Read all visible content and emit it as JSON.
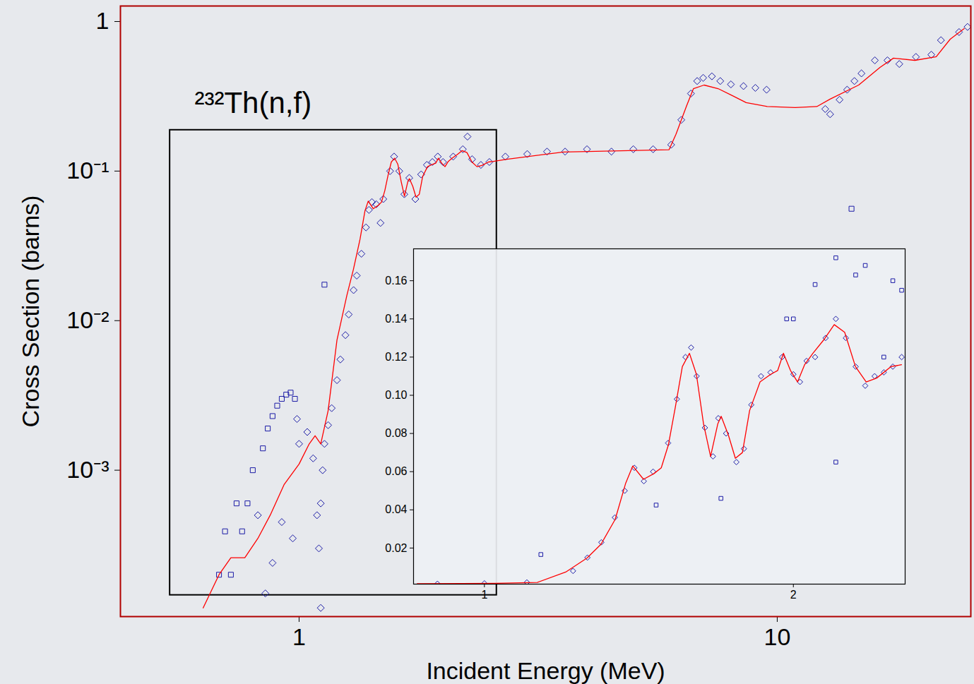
{
  "chart_data": [
    {
      "type": "line",
      "title": "²³²Th(n,f)",
      "x_label": "Incident Energy (MeV)",
      "y_label": "Cross Section (barns)",
      "log": true,
      "grid": false,
      "xlim": [
        0.423,
        25.4
      ],
      "ylim": [
        0.000105,
        1.27
      ],
      "xticks": [
        1,
        10
      ],
      "yticks": [
        1,
        {
          "value": 0.1,
          "label": "10⁻¹"
        },
        {
          "value": 0.01,
          "label": "10⁻²"
        },
        {
          "value": 0.001,
          "label": "10⁻³"
        }
      ],
      "inset_region": {
        "x": [
          0.537,
          2.59
        ],
        "y": [
          0.000146,
          0.188
        ]
      },
      "series": [
        {
          "type": "scatter",
          "marker": "diamond",
          "color": "#1c1ca6",
          "x": [
            0.82,
            0.85,
            0.88,
            0.92,
            0.97,
            0.99,
            1.0,
            1.04,
            1.07,
            1.09,
            1.1,
            1.11,
            1.11,
            1.12,
            1.13,
            1.15,
            1.17,
            1.2,
            1.22,
            1.25,
            1.27,
            1.3,
            1.32,
            1.35,
            1.38,
            1.4,
            1.42,
            1.45,
            1.48,
            1.5,
            1.55,
            1.58,
            1.62,
            1.66,
            1.7,
            1.75,
            1.8,
            1.85,
            1.9,
            1.95,
            2.0,
            2.1,
            2.2,
            2.25,
            2.3,
            2.4,
            2.5,
            2.7,
            3.0,
            3.3,
            3.6,
            4.0,
            4.5,
            5.0,
            5.5,
            6.0,
            6.3,
            6.6,
            6.8,
            7.0,
            7.3,
            7.6,
            8.0,
            8.5,
            9.0,
            9.5,
            12.6,
            12.9,
            13.5,
            14.0,
            14.5,
            15.0,
            16.0,
            17.0,
            18.0,
            19.5,
            21.0,
            22.0,
            24.0,
            25.0
          ],
          "values": [
            0.0005,
            0.00015,
            0.00024,
            0.00045,
            0.00035,
            0.0022,
            0.0015,
            0.0018,
            0.0012,
            0.0005,
            0.0003,
            0.0006,
            0.00012,
            0.001,
            0.0015,
            0.002,
            0.0026,
            0.004,
            0.0055,
            0.008,
            0.011,
            0.016,
            0.02,
            0.028,
            0.042,
            0.055,
            0.062,
            0.06,
            0.045,
            0.065,
            0.1,
            0.125,
            0.1,
            0.07,
            0.09,
            0.065,
            0.095,
            0.11,
            0.115,
            0.125,
            0.115,
            0.125,
            0.14,
            0.17,
            0.12,
            0.11,
            0.115,
            0.125,
            0.13,
            0.135,
            0.135,
            0.14,
            0.135,
            0.14,
            0.14,
            0.15,
            0.22,
            0.33,
            0.4,
            0.42,
            0.43,
            0.4,
            0.38,
            0.37,
            0.36,
            0.35,
            0.26,
            0.24,
            0.3,
            0.35,
            0.4,
            0.45,
            0.55,
            0.55,
            0.52,
            0.58,
            0.6,
            0.75,
            0.85,
            0.92
          ]
        },
        {
          "type": "scatter",
          "marker": "square",
          "color": "#1c1ca6",
          "x": [
            0.68,
            0.7,
            0.72,
            0.74,
            0.76,
            0.78,
            0.8,
            0.84,
            0.86,
            0.88,
            0.9,
            0.92,
            0.94,
            0.96,
            0.98,
            1.13,
            14.3
          ],
          "values": [
            0.0002,
            0.00039,
            0.0002,
            0.0006,
            0.00039,
            0.0006,
            0.001,
            0.0014,
            0.0019,
            0.0023,
            0.0027,
            0.003,
            0.0032,
            0.0033,
            0.003,
            0.0174,
            0.056
          ]
        },
        {
          "type": "line",
          "color": "#ff0000",
          "x": [
            0.63,
            0.68,
            0.72,
            0.77,
            0.82,
            0.87,
            0.93,
            1.0,
            1.05,
            1.08,
            1.11,
            1.15,
            1.2,
            1.259,
            1.299,
            1.341,
            1.373,
            1.395,
            1.429,
            1.463,
            1.487,
            1.511,
            1.535,
            1.559,
            1.584,
            1.609,
            1.635,
            1.661,
            1.688,
            1.701,
            1.729,
            1.756,
            1.784,
            1.813,
            1.856,
            1.901,
            1.931,
            1.956,
            1.987,
            2.019,
            2.051,
            2.09,
            2.141,
            2.192,
            2.244,
            2.299,
            2.355,
            2.411,
            2.489,
            2.549,
            2.72,
            3.57,
            5.94,
            6.14,
            6.46,
            6.68,
            7.03,
            7.52,
            8.05,
            8.61,
            9.53,
            10.9,
            12.1,
            12.9,
            14.8,
            16.4,
            17.5,
            19.4,
            21.5,
            23.0,
            24.6
          ],
          "values": [
            0.00012,
            0.0002,
            0.00026,
            0.00026,
            0.00035,
            0.0005,
            0.0008,
            0.0011,
            0.0015,
            0.0017,
            0.0015,
            0.0025,
            0.0074,
            0.0148,
            0.022,
            0.035,
            0.054,
            0.063,
            0.056,
            0.059,
            0.062,
            0.074,
            0.094,
            0.115,
            0.122,
            0.111,
            0.085,
            0.068,
            0.085,
            0.089,
            0.079,
            0.067,
            0.07,
            0.092,
            0.107,
            0.111,
            0.113,
            0.122,
            0.113,
            0.107,
            0.116,
            0.122,
            0.129,
            0.137,
            0.133,
            0.115,
            0.107,
            0.109,
            0.115,
            0.116,
            0.12,
            0.134,
            0.139,
            0.176,
            0.272,
            0.356,
            0.376,
            0.356,
            0.32,
            0.287,
            0.27,
            0.266,
            0.27,
            0.303,
            0.376,
            0.493,
            0.569,
            0.55,
            0.581,
            0.762,
            0.897
          ]
        }
      ]
    },
    {
      "type": "line",
      "log": "x",
      "grid": false,
      "xlim": [
        0.853,
        2.57
      ],
      "ylim": [
        0.0011,
        0.1767
      ],
      "xticks": [
        1,
        2
      ],
      "yticks": [
        0.02,
        0.04,
        0.06,
        0.08,
        {
          "value": 0.1,
          "label": "0.10"
        },
        0.12,
        0.14,
        0.16
      ],
      "series": [
        {
          "type": "scatter",
          "marker": "diamond",
          "color": "#1c1ca6",
          "x": [
            0.9,
            1.0,
            1.1,
            1.22,
            1.26,
            1.3,
            1.34,
            1.37,
            1.4,
            1.43,
            1.46,
            1.51,
            1.54,
            1.57,
            1.59,
            1.61,
            1.64,
            1.67,
            1.69,
            1.72,
            1.76,
            1.79,
            1.82,
            1.86,
            1.9,
            1.95,
            2.0,
            2.03,
            2.06,
            2.1,
            2.15,
            2.2,
            2.25,
            2.3,
            2.35,
            2.4,
            2.45,
            2.5,
            2.55
          ],
          "values": [
            0.0013,
            0.0015,
            0.002,
            0.008,
            0.015,
            0.023,
            0.036,
            0.05,
            0.062,
            0.055,
            0.06,
            0.075,
            0.098,
            0.12,
            0.125,
            0.11,
            0.083,
            0.068,
            0.088,
            0.08,
            0.065,
            0.072,
            0.095,
            0.11,
            0.112,
            0.12,
            0.111,
            0.107,
            0.118,
            0.12,
            0.13,
            0.14,
            0.13,
            0.115,
            0.105,
            0.11,
            0.112,
            0.115,
            0.12
          ]
        },
        {
          "type": "scatter",
          "marker": "square",
          "color": "#1c1ca6",
          "x": [
            1.135,
            1.47,
            1.7,
            1.97,
            2.0,
            2.1,
            2.2,
            2.2,
            2.3,
            2.35,
            2.45,
            2.5,
            2.55
          ],
          "values": [
            0.0166,
            0.0425,
            0.046,
            0.14,
            0.14,
            0.158,
            0.172,
            0.065,
            0.163,
            0.168,
            0.12,
            0.16,
            0.155
          ]
        },
        {
          "type": "line",
          "color": "#ff0000",
          "x": [
            0.86,
            0.95,
            1.024,
            1.126,
            1.2,
            1.259,
            1.299,
            1.341,
            1.373,
            1.395,
            1.429,
            1.463,
            1.487,
            1.511,
            1.535,
            1.559,
            1.584,
            1.609,
            1.635,
            1.661,
            1.688,
            1.701,
            1.729,
            1.756,
            1.784,
            1.813,
            1.856,
            1.901,
            1.931,
            1.956,
            1.987,
            2.019,
            2.051,
            2.09,
            2.141,
            2.192,
            2.244,
            2.299,
            2.355,
            2.411,
            2.489,
            2.549
          ],
          "values": [
            0.0013,
            0.0014,
            0.0015,
            0.002,
            0.0074,
            0.0148,
            0.022,
            0.035,
            0.054,
            0.063,
            0.056,
            0.059,
            0.062,
            0.074,
            0.094,
            0.115,
            0.122,
            0.111,
            0.085,
            0.068,
            0.085,
            0.089,
            0.079,
            0.067,
            0.07,
            0.092,
            0.107,
            0.111,
            0.113,
            0.122,
            0.113,
            0.107,
            0.116,
            0.122,
            0.129,
            0.137,
            0.133,
            0.115,
            0.107,
            0.109,
            0.115,
            0.116
          ]
        }
      ]
    }
  ]
}
